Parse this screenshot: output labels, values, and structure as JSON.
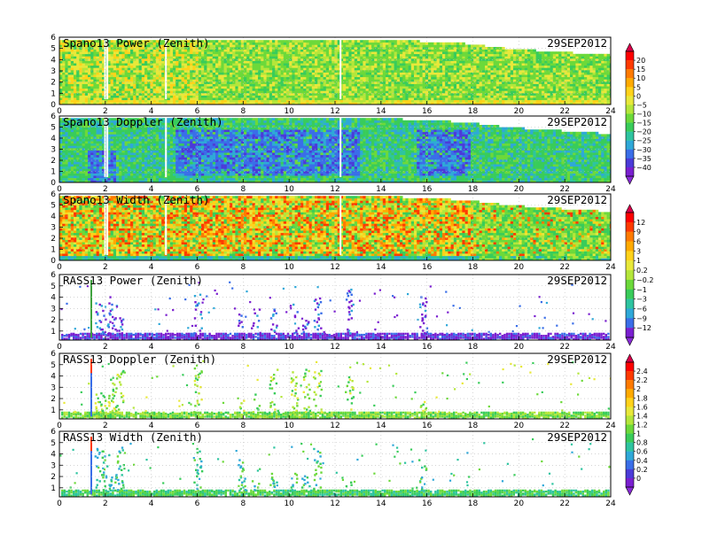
{
  "date_label": "29SEP2012",
  "chart_data": [
    {
      "type": "heatmap",
      "title": "Spano13 Power (Zenith)",
      "x_ticks": [
        "0",
        "2",
        "4",
        "6",
        "8",
        "10",
        "12",
        "14",
        "16",
        "18",
        "20",
        "22",
        "24"
      ],
      "y_ticks": [
        "0",
        "1",
        "2",
        "3",
        "4",
        "5",
        "6"
      ],
      "xlim": [
        0,
        24
      ],
      "ylim": [
        0,
        6
      ],
      "data_extent": {
        "x": [
          0,
          24
        ],
        "y_top": [
          5.7,
          5.7,
          5.5,
          5.3,
          5.1,
          4.8,
          4.3
        ],
        "y_top_x": [
          0,
          14,
          16,
          18,
          18.5,
          20,
          24
        ]
      },
      "value_note": "dominant green/yellow; high-power band near 0.5-1 km",
      "colorbar_id": "cb1"
    },
    {
      "type": "heatmap",
      "title": "Spano13 Doppler (Zenith)",
      "x_ticks": [
        "0",
        "2",
        "4",
        "6",
        "8",
        "10",
        "12",
        "14",
        "16",
        "18",
        "20",
        "22",
        "24"
      ],
      "y_ticks": [
        "0",
        "1",
        "2",
        "3",
        "4",
        "5",
        "6"
      ],
      "xlim": [
        0,
        24
      ],
      "ylim": [
        0,
        6
      ],
      "colorbar_id": "cb1"
    },
    {
      "type": "heatmap",
      "title": "Spano13 Width (Zenith)",
      "x_ticks": [
        "0",
        "2",
        "4",
        "6",
        "8",
        "10",
        "12",
        "14",
        "16",
        "18",
        "20",
        "22",
        "24"
      ],
      "y_ticks": [
        "0",
        "1",
        "2",
        "3",
        "4",
        "5",
        "6"
      ],
      "xlim": [
        0,
        24
      ],
      "ylim": [
        0,
        6
      ],
      "colorbar_id": "cb2"
    },
    {
      "type": "scatter",
      "title": "RASS13 Power (Zenith)",
      "x_ticks": [
        "0",
        "2",
        "4",
        "6",
        "8",
        "10",
        "12",
        "14",
        "16",
        "18",
        "20",
        "22",
        "24"
      ],
      "y_ticks": [
        "1",
        "2",
        "3",
        "4",
        "5",
        "6"
      ],
      "xlim": [
        0,
        24
      ],
      "ylim": [
        0.2,
        6
      ],
      "colorbar_id": "cb2"
    },
    {
      "type": "scatter",
      "title": "RASS13 Doppler (Zenith)",
      "x_ticks": [
        "0",
        "2",
        "4",
        "6",
        "8",
        "10",
        "12",
        "14",
        "16",
        "18",
        "20",
        "22",
        "24"
      ],
      "y_ticks": [
        "1",
        "2",
        "3",
        "4",
        "5",
        "6"
      ],
      "xlim": [
        0,
        24
      ],
      "ylim": [
        0.2,
        6
      ],
      "colorbar_id": "cb3"
    },
    {
      "type": "scatter",
      "title": "RASS13 Width (Zenith)",
      "x_ticks": [
        "0",
        "2",
        "4",
        "6",
        "8",
        "10",
        "12",
        "14",
        "16",
        "18",
        "20",
        "22",
        "24"
      ],
      "y_ticks": [
        "1",
        "2",
        "3",
        "4",
        "5",
        "6"
      ],
      "xlim": [
        0,
        24
      ],
      "ylim": [
        0.2,
        6
      ],
      "colorbar_id": "cb3"
    }
  ],
  "colorbars": [
    {
      "id": "cb1",
      "labels": [
        "20",
        "15",
        "10",
        "5",
        "0",
        "−5",
        "−10",
        "−15",
        "−20",
        "−25",
        "−30",
        "−35",
        "−40"
      ],
      "colors": [
        "#ff0000",
        "#ff3a00",
        "#ff7a00",
        "#ffaa00",
        "#ffd21a",
        "#e8e83a",
        "#b4e63a",
        "#6cd93a",
        "#39cc5a",
        "#2ec4a0",
        "#2fa8d8",
        "#3a6ee8",
        "#4b3bd8",
        "#7a1fd0"
      ],
      "top_arrow_color": "#d8004a",
      "bottom_arrow_color": "#8a2bd8"
    },
    {
      "id": "cb2",
      "labels": [
        "12",
        "9",
        "6",
        "3",
        "1",
        "0.2",
        "−0.2",
        "−1",
        "−3",
        "−6",
        "−9",
        "−12"
      ],
      "colors": [
        "#ff0000",
        "#ff3a00",
        "#ff7a00",
        "#ffaa00",
        "#ffd21a",
        "#e8e83a",
        "#b4e63a",
        "#6cd93a",
        "#39cc5a",
        "#2ec4a0",
        "#2fa8d8",
        "#3a6ee8",
        "#7a1fd0"
      ],
      "top_arrow_color": "#d8004a",
      "bottom_arrow_color": "#8a2bd8"
    },
    {
      "id": "cb3",
      "labels": [
        "2.4",
        "2.2",
        "2",
        "1.8",
        "1.6",
        "1.4",
        "1.2",
        "1",
        "0.8",
        "0.6",
        "0.4",
        "0.2",
        "0"
      ],
      "colors": [
        "#ff0000",
        "#ff3a00",
        "#ff7a00",
        "#ffaa00",
        "#ffd21a",
        "#e8e83a",
        "#b4e63a",
        "#6cd93a",
        "#39cc5a",
        "#2ec4a0",
        "#2fa8d8",
        "#3a6ee8",
        "#4b3bd8",
        "#7a1fd0"
      ],
      "top_arrow_color": "#d8004a",
      "bottom_arrow_color": "#8a2bd8"
    }
  ]
}
